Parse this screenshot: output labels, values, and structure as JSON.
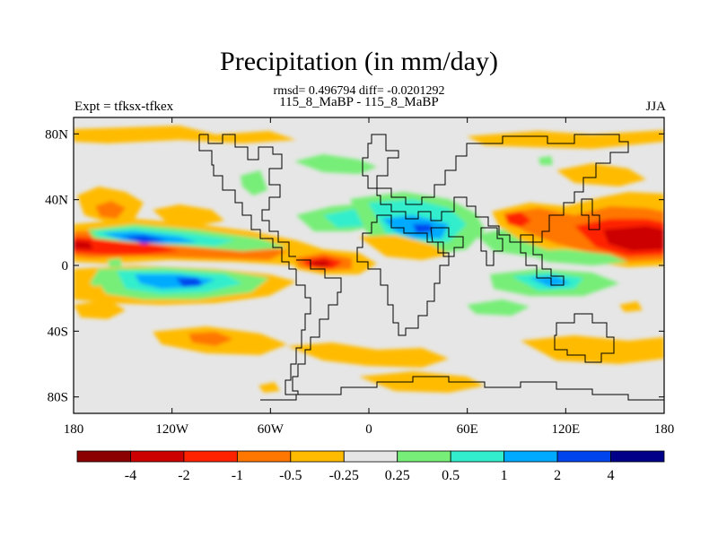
{
  "title": "Precipitation (in mm/day)",
  "stats_line": "rmsd= 0.496794 diff= -0.0201292",
  "left_label": "Expt = tfksx-tfkex",
  "center_label": "115_8_MaBP - 115_8_MaBP",
  "right_label": "JJA",
  "map": {
    "lon_range": [
      -180,
      180
    ],
    "lat_range": [
      -90,
      90
    ],
    "lon_ticks": [
      {
        "value": -180,
        "label": "180"
      },
      {
        "value": -120,
        "label": "120W"
      },
      {
        "value": -60,
        "label": "60W"
      },
      {
        "value": 0,
        "label": "0"
      },
      {
        "value": 60,
        "label": "60E"
      },
      {
        "value": 120,
        "label": "120E"
      },
      {
        "value": 180,
        "label": "180"
      }
    ],
    "lat_ticks": [
      {
        "value": 80,
        "label": "80N"
      },
      {
        "value": 40,
        "label": "40N"
      },
      {
        "value": 0,
        "label": "0"
      },
      {
        "value": -40,
        "label": "40S"
      },
      {
        "value": -80,
        "label": "80S"
      }
    ],
    "background_color": "#e6e6e6"
  },
  "colorbar": {
    "colors": [
      "#8b0000",
      "#cc0000",
      "#ff2200",
      "#ff7700",
      "#ffbb00",
      "#e6e6e6",
      "#77ee77",
      "#33eecc",
      "#00aaff",
      "#0044ee",
      "#000088"
    ],
    "labels": [
      "-4",
      "-2",
      "-1",
      "-0.5",
      "-0.25",
      "0.25",
      "0.5",
      "1",
      "2",
      "4"
    ]
  }
}
